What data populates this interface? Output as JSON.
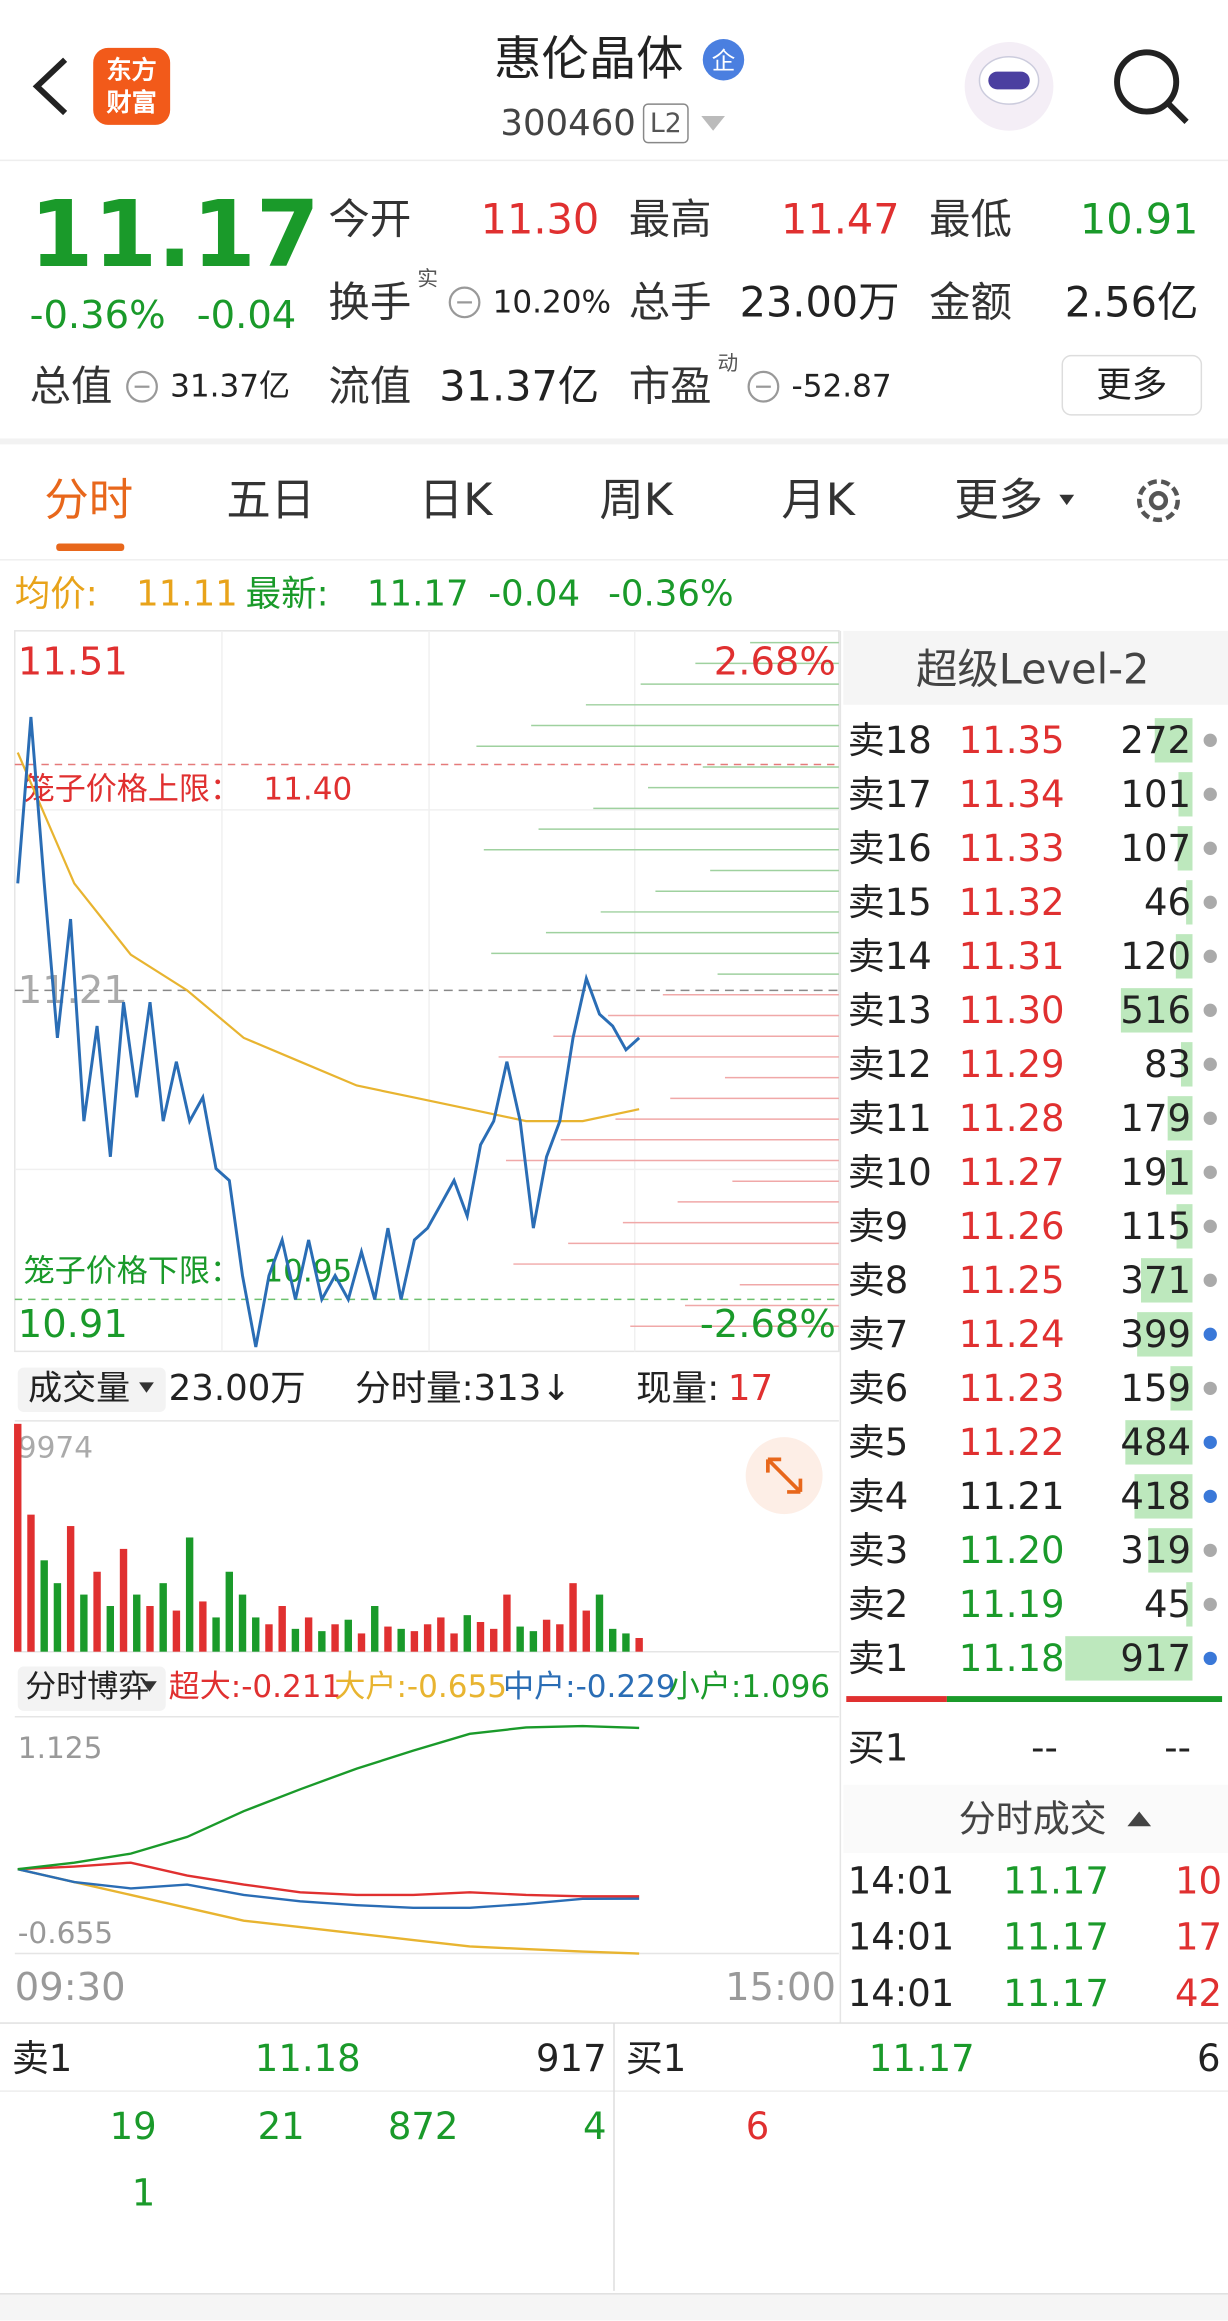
{
  "header": {
    "title": "惠伦晶体",
    "badge": "企",
    "code": "300460",
    "level": "L2",
    "logo": [
      "东方",
      "财富"
    ]
  },
  "quote": {
    "price": "11.17",
    "change_pct": "-0.36%",
    "change": "-0.04",
    "stats": [
      {
        "label": "今开",
        "value": "11.30"
      },
      {
        "label": "最高",
        "value": "11.47"
      },
      {
        "label": "最低",
        "value": "10.91"
      },
      {
        "label": "换手",
        "sup": "实",
        "value": "10.20%"
      },
      {
        "label": "总手",
        "value": "23.00万"
      },
      {
        "label": "金额",
        "value": "2.56亿"
      },
      {
        "label": "总值",
        "value": "31.37亿"
      },
      {
        "label": "流值",
        "value": "31.37亿"
      },
      {
        "label": "市盈",
        "sup": "动",
        "value": "-52.87"
      }
    ],
    "more": "更多"
  },
  "tabs": [
    "分时",
    "五日",
    "日K",
    "周K",
    "月K",
    "更多"
  ],
  "summary": {
    "avg_label": "均价:",
    "avg": "11.11",
    "last_label": "最新:",
    "last": "11.17",
    "change": "-0.04",
    "change_pct": "-0.36%"
  },
  "price_chart": {
    "ylim": [
      10.91,
      11.51
    ],
    "mid": 11.21,
    "pct_top": "2.68%",
    "pct_bottom": "-2.68%",
    "upper": {
      "text": "笼子价格上限：",
      "value": 11.4,
      "label": "11.40"
    },
    "lower": {
      "text": "笼子价格下限：",
      "value": 10.95
    },
    "price_color": "#2a6db5",
    "avg_color": "#e8b430",
    "price": [
      11.3,
      11.44,
      11.3,
      11.17,
      11.27,
      11.1,
      11.18,
      11.07,
      11.2,
      11.12,
      11.2,
      11.1,
      11.15,
      11.1,
      11.12,
      11.06,
      11.05,
      10.97,
      10.91,
      10.97,
      11.0,
      10.95,
      11.0,
      10.95,
      10.97,
      10.95,
      10.99,
      10.95,
      11.01,
      10.95,
      11.0,
      11.01,
      11.03,
      11.05,
      11.02,
      11.08,
      11.1,
      11.15,
      11.1,
      11.01,
      11.07,
      11.1,
      11.17,
      11.22,
      11.19,
      11.18,
      11.16,
      11.17
    ],
    "avg": [
      11.41,
      11.3,
      11.24,
      11.21,
      11.17,
      11.15,
      11.13,
      11.12,
      11.11,
      11.1,
      11.1,
      11.11
    ]
  },
  "volume": {
    "title": "成交量",
    "total": "23.00万",
    "tick": "分时量:313↓",
    "current_label": "现量:",
    "current": "17",
    "ymax": 9974,
    "values": [
      9974,
      6000,
      4000,
      3000,
      5500,
      2500,
      3500,
      2000,
      4500,
      2500,
      2000,
      3000,
      1800,
      5000,
      2200,
      1500,
      3500,
      2500,
      1500,
      1200,
      2000,
      1000,
      1500,
      900,
      1200,
      1400,
      800,
      2000,
      1100,
      1000,
      900,
      1200,
      1500,
      800,
      1600,
      1300,
      1000,
      2500,
      1100,
      900,
      1400,
      1200,
      3000,
      1800,
      2500,
      1000,
      800,
      600
    ]
  },
  "game": {
    "title": "分时博弈",
    "ylim": [
      -0.655,
      1.125
    ],
    "series": [
      {
        "name": "超大:-0.211",
        "color": "#e03030",
        "values": [
          0,
          0.02,
          0.05,
          -0.05,
          -0.12,
          -0.18,
          -0.2,
          -0.2,
          -0.18,
          -0.2,
          -0.21,
          -0.211
        ]
      },
      {
        "name": "大户:-0.655",
        "color": "#e8b430",
        "values": [
          0,
          -0.1,
          -0.2,
          -0.3,
          -0.4,
          -0.45,
          -0.5,
          -0.55,
          -0.6,
          -0.62,
          -0.64,
          -0.655
        ]
      },
      {
        "name": "中户:-0.229",
        "color": "#2a6db5",
        "values": [
          0,
          -0.1,
          -0.15,
          -0.12,
          -0.2,
          -0.25,
          -0.28,
          -0.3,
          -0.3,
          -0.27,
          -0.23,
          -0.229
        ]
      },
      {
        "name": "小户:1.096",
        "color": "#1a9a2a",
        "values": [
          0,
          0.05,
          0.12,
          0.25,
          0.45,
          0.62,
          0.78,
          0.92,
          1.05,
          1.1,
          1.11,
          1.096
        ]
      }
    ],
    "time_start": "09:30",
    "time_end": "15:00"
  },
  "order_book": {
    "title": "超级Level-2",
    "asks": [
      {
        "label": "卖18",
        "price": "11.35",
        "qty": 272,
        "dot": "#aaaaaa"
      },
      {
        "label": "卖17",
        "price": "11.34",
        "qty": 101,
        "dot": "#aaaaaa"
      },
      {
        "label": "卖16",
        "price": "11.33",
        "qty": 107,
        "dot": "#aaaaaa"
      },
      {
        "label": "卖15",
        "price": "11.32",
        "qty": 46,
        "dot": "#aaaaaa"
      },
      {
        "label": "卖14",
        "price": "11.31",
        "qty": 120,
        "dot": "#aaaaaa"
      },
      {
        "label": "卖13",
        "price": "11.30",
        "qty": 516,
        "dot": "#aaaaaa"
      },
      {
        "label": "卖12",
        "price": "11.29",
        "qty": 83,
        "dot": "#aaaaaa"
      },
      {
        "label": "卖11",
        "price": "11.28",
        "qty": 179,
        "dot": "#aaaaaa"
      },
      {
        "label": "卖10",
        "price": "11.27",
        "qty": 191,
        "dot": "#aaaaaa"
      },
      {
        "label": "卖9",
        "price": "11.26",
        "qty": 115,
        "dot": "#aaaaaa"
      },
      {
        "label": "卖8",
        "price": "11.25",
        "qty": 371,
        "dot": "#aaaaaa"
      },
      {
        "label": "卖7",
        "price": "11.24",
        "qty": 399,
        "dot": "#3a78d8"
      },
      {
        "label": "卖6",
        "price": "11.23",
        "qty": 159,
        "dot": "#aaaaaa"
      },
      {
        "label": "卖5",
        "price": "11.22",
        "qty": 484,
        "dot": "#3a78d8"
      },
      {
        "label": "卖4",
        "price": "11.21",
        "qty": 418,
        "dot": "#3a78d8"
      },
      {
        "label": "卖3",
        "price": "11.20",
        "qty": 319,
        "dot": "#aaaaaa"
      },
      {
        "label": "卖2",
        "price": "11.19",
        "qty": 45,
        "dot": "#aaaaaa"
      },
      {
        "label": "卖1",
        "price": "11.18",
        "qty": 917,
        "dot": "#3a78d8"
      }
    ],
    "bid": {
      "label": "买1",
      "price": "--",
      "qty": "--"
    },
    "trades_title": "分时成交",
    "trades": [
      {
        "time": "14:01",
        "price": "11.17",
        "qty": "10"
      },
      {
        "time": "14:01",
        "price": "11.17",
        "qty": "17"
      },
      {
        "time": "14:01",
        "price": "11.17",
        "qty": "42"
      }
    ]
  },
  "bottom": {
    "sell": {
      "label": "卖1",
      "price": "11.18",
      "qty": "917"
    },
    "buy": {
      "label": "买1",
      "price": "11.17",
      "qty": "6"
    },
    "sell_queue": [
      "19",
      "21",
      "872",
      "4",
      "1"
    ],
    "buy_queue": [
      "6"
    ]
  }
}
